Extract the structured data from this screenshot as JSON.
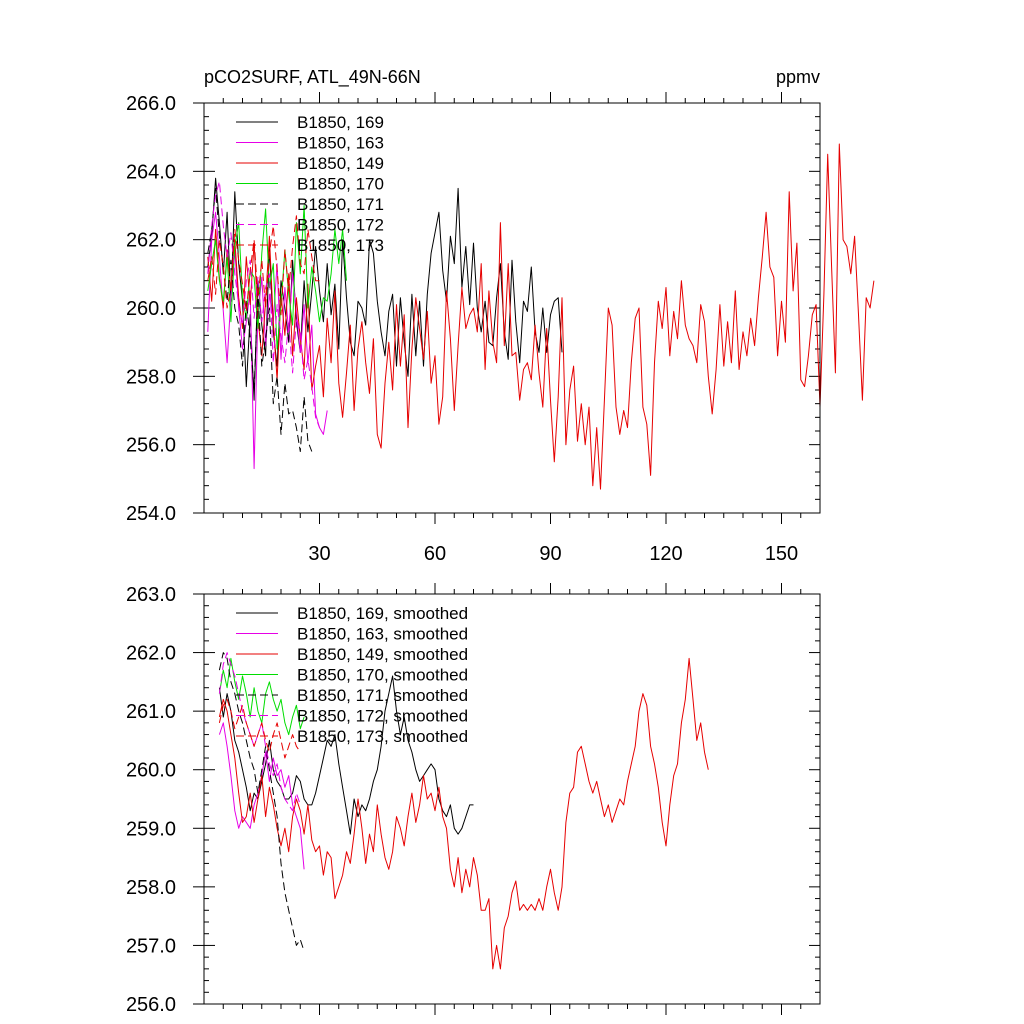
{
  "chart_data": [
    {
      "type": "line",
      "title": "pCO2SURF, ATL_49N-66N",
      "units": "ppmv",
      "xlim": [
        0,
        160
      ],
      "ylim": [
        254,
        266
      ],
      "x_ticks": [
        30,
        60,
        90,
        120,
        150
      ],
      "y_ticks": [
        254.0,
        256.0,
        258.0,
        260.0,
        262.0,
        264.0,
        266.0
      ],
      "y_tick_labels": [
        "254.0",
        "256.0",
        "258.0",
        "260.0",
        "262.0",
        "264.0",
        "266.0"
      ],
      "x_tick_labels": [
        "30",
        "60",
        "90",
        "120",
        "150"
      ],
      "legend_position": "top-left",
      "series": [
        {
          "name": "B1850, 169",
          "color": "#000000",
          "dash": "solid",
          "start": 1,
          "values": [
            261.2,
            262.1,
            263.8,
            262.5,
            261.0,
            262.8,
            260.2,
            263.4,
            261.3,
            260.2,
            257.7,
            259.8,
            257.3,
            260.8,
            259.5,
            258.6,
            261.8,
            259.3,
            258.3,
            260.8,
            260.0,
            259.0,
            261.4,
            259.6,
            258.7,
            260.8,
            259.3,
            260.5,
            261.8,
            260.5,
            259.6,
            261.3,
            259.8,
            260.7,
            258.8,
            262.0,
            260.3,
            259.0,
            258.6,
            260.2,
            260.0,
            259.5,
            262.0,
            261.6,
            260.2,
            259.3,
            258.6,
            259.9,
            260.4,
            258.3,
            260.3,
            259.0,
            258.0,
            260.4,
            258.6,
            260.2,
            258.3,
            260.4,
            261.6,
            262.2,
            262.8,
            261.1,
            260.2,
            262.1,
            261.3,
            263.5,
            260.6,
            261.8,
            260.1,
            261.9,
            260.0,
            259.3,
            260.2,
            259.0,
            258.9,
            260.3,
            261.3,
            259.3,
            258.5,
            261.4,
            259.6,
            258.4,
            260.2,
            259.9,
            261.2,
            259.3,
            258.7,
            260.0,
            258.7,
            259.8,
            260.2,
            260.3,
            258.7
          ]
        },
        {
          "name": "B1850, 163",
          "color": "#e600e6",
          "dash": "solid",
          "start": 1,
          "values": [
            259.3,
            262.0,
            262.8,
            261.5,
            259.9,
            258.4,
            260.3,
            261.7,
            260.0,
            258.8,
            259.6,
            260.5,
            255.3,
            259.8,
            260.9,
            258.9,
            260.4,
            259.6,
            261.3,
            258.5,
            260.6,
            259.3,
            261.0,
            259.9,
            258.7,
            260.1,
            258.4,
            259.5,
            256.9,
            256.5,
            256.3,
            257.0
          ]
        },
        {
          "name": "B1850, 149",
          "color": "#e60000",
          "dash": "solid",
          "start": 1,
          "values": [
            261.5,
            260.2,
            262.3,
            260.9,
            260.0,
            261.7,
            260.5,
            262.0,
            260.3,
            259.4,
            261.5,
            260.1,
            261.9,
            259.7,
            258.6,
            260.2,
            262.1,
            259.6,
            257.9,
            260.4,
            259.2,
            261.0,
            258.6,
            260.3,
            259.1,
            258.2,
            260.7,
            257.6,
            258.3,
            258.9,
            257.4,
            259.7,
            258.4,
            260.5,
            257.8,
            256.8,
            258.1,
            259.5,
            257.0,
            258.8,
            259.6,
            258.4,
            257.5,
            259.1,
            256.3,
            255.9,
            257.8,
            259.0,
            257.6,
            260.1,
            258.3,
            259.8,
            256.5,
            258.8,
            260.3,
            259.4,
            258.5,
            259.9,
            257.8,
            258.6,
            256.6,
            257.4,
            260.5,
            259.1,
            257.0,
            258.9,
            260.6,
            259.4,
            259.8,
            260.0,
            259.3,
            261.3,
            258.2,
            260.5,
            259.0,
            258.4,
            262.5,
            258.9,
            261.3,
            258.6,
            258.7,
            257.3,
            258.2,
            258.4,
            257.9,
            259.5,
            258.1,
            257.1,
            259.4,
            257.3,
            255.5,
            257.4,
            260.3,
            256.0,
            257.6,
            258.3,
            256.1,
            257.2,
            256.0,
            257.1,
            254.8,
            256.5,
            254.7,
            257.3,
            260.0,
            259.5,
            257.1,
            256.3,
            257.0,
            256.5,
            258.4,
            259.7,
            260.0,
            257.1,
            256.6,
            255.1,
            258.4,
            260.2,
            259.4,
            260.6,
            258.6,
            259.9,
            259.1,
            260.8,
            259.5,
            259.1,
            258.9,
            258.4,
            260.1,
            259.6,
            258.0,
            256.9,
            258.2,
            260.1,
            258.3,
            259.6,
            258.4,
            260.5,
            258.2,
            259.3,
            258.6,
            259.7,
            258.9,
            260.3,
            261.5,
            262.8,
            261.2,
            260.9,
            258.6,
            260.2,
            259.0,
            263.4,
            260.5,
            261.9,
            257.9,
            257.7,
            258.6,
            259.8,
            260.1,
            257.1,
            260.4,
            264.5,
            261.2,
            258.1,
            264.8,
            262.0,
            261.8,
            261.0,
            262.1,
            259.8,
            257.3,
            260.3,
            260.0,
            260.8
          ]
        },
        {
          "name": "B1850, 170",
          "color": "#00dd00",
          "dash": "solid",
          "start": 1,
          "values": [
            260.5,
            261.3,
            262.0,
            260.8,
            260.2,
            261.5,
            259.6,
            261.8,
            262.5,
            260.3,
            259.7,
            261.1,
            260.9,
            259.4,
            261.6,
            262.9,
            260.6,
            261.3,
            258.8,
            260.1,
            261.7,
            260.4,
            259.5,
            262.5,
            261.0,
            263.0,
            260.0,
            261.2,
            260.5,
            259.6,
            260.3,
            260.2,
            261.0,
            262.3,
            261.3,
            262.3,
            260.8
          ]
        },
        {
          "name": "B1850, 171",
          "color": "#000000",
          "dash": "dashed",
          "start": 1,
          "values": [
            261.6,
            262.3,
            263.5,
            262.1,
            261.2,
            260.2,
            261.4,
            260.0,
            259.5,
            258.3,
            260.2,
            259.1,
            257.6,
            260.5,
            258.3,
            259.1,
            260.0,
            257.2,
            258.0,
            256.3,
            257.8,
            256.9,
            257.0,
            256.5,
            255.8,
            257.4,
            256.1,
            255.8
          ]
        },
        {
          "name": "B1850, 172",
          "color": "#e600e6",
          "dash": "dashed",
          "start": 1,
          "values": [
            261.0,
            262.4,
            263.3,
            263.7,
            262.4,
            261.5,
            262.2,
            261.0,
            260.1,
            259.5,
            260.8,
            261.4,
            259.7,
            260.9,
            259.6,
            260.6,
            261.0,
            258.4,
            260.1,
            259.2,
            258.4,
            259.6,
            258.1,
            259.7,
            259.3,
            257.9,
            258.5,
            257.7,
            256.8,
            256.5
          ]
        },
        {
          "name": "B1850, 173",
          "color": "#e60000",
          "dash": "dashed",
          "start": 1,
          "values": [
            260.8,
            261.5,
            260.4,
            262.0,
            261.2,
            260.0,
            260.6,
            262.3,
            261.4,
            260.7,
            259.9,
            261.1,
            262.0,
            260.3,
            261.4,
            260.0,
            261.6,
            262.4,
            261.1,
            259.8,
            261.7,
            260.5,
            261.8,
            262.7,
            261.3,
            261.0,
            262.3,
            261.5,
            260.8,
            260.8
          ]
        }
      ]
    },
    {
      "type": "line",
      "title": "",
      "xlim": [
        0,
        160
      ],
      "ylim": [
        256,
        263
      ],
      "x_ticks": [
        30,
        60,
        90,
        120,
        150
      ],
      "y_ticks": [
        256.0,
        257.0,
        258.0,
        259.0,
        260.0,
        261.0,
        262.0,
        263.0
      ],
      "y_tick_labels": [
        "256.0",
        "257.0",
        "258.0",
        "259.0",
        "260.0",
        "261.0",
        "262.0",
        "263.0"
      ],
      "legend_position": "top-left",
      "series": [
        {
          "name": "B1850, 169, smoothed",
          "color": "#000000",
          "dash": "solid",
          "start": 4,
          "values": [
            261.4,
            260.9,
            261.3,
            261.0,
            260.5,
            260.3,
            260.0,
            259.7,
            259.3,
            259.6,
            259.5,
            259.8,
            260.1,
            260.5,
            260.0,
            259.8,
            259.7,
            259.5,
            259.5,
            259.6,
            259.9,
            259.8,
            259.5,
            259.4,
            259.4,
            259.6,
            259.9,
            260.2,
            260.5,
            260.4,
            260.6,
            260.1,
            259.7,
            259.3,
            258.9,
            259.5,
            259.2,
            259.4,
            259.3,
            259.5,
            259.8,
            260.0,
            260.4,
            261.0,
            261.3,
            261.6,
            261.0,
            260.6,
            260.9,
            260.5,
            260.3,
            260.0,
            259.8,
            259.9,
            260.0,
            260.1,
            260.0,
            259.5,
            259.3,
            259.2,
            259.4,
            259.0,
            258.9,
            259.0,
            259.2,
            259.4,
            259.4
          ]
        },
        {
          "name": "B1850, 163, smoothed",
          "color": "#e600e6",
          "dash": "solid",
          "start": 4,
          "values": [
            260.6,
            260.8,
            260.4,
            259.9,
            259.3,
            259.0,
            259.2,
            259.1,
            259.0,
            259.4,
            259.6,
            259.9,
            260.3,
            259.8,
            260.2,
            259.9,
            260.0,
            259.7,
            259.9,
            259.4,
            259.2,
            259.0,
            258.3
          ]
        },
        {
          "name": "B1850, 149, smoothed",
          "color": "#e60000",
          "dash": "solid",
          "start": 4,
          "values": [
            260.9,
            261.2,
            261.0,
            260.6,
            260.2,
            259.6,
            259.1,
            259.2,
            259.6,
            259.1,
            259.5,
            259.9,
            259.2,
            259.7,
            259.4,
            259.0,
            258.7,
            259.0,
            258.6,
            259.2,
            259.5,
            259.3,
            258.9,
            259.4,
            258.8,
            258.6,
            258.7,
            258.2,
            258.6,
            258.5,
            257.8,
            258.0,
            258.2,
            258.6,
            258.4,
            258.9,
            259.5,
            259.0,
            258.4,
            258.9,
            258.6,
            259.4,
            258.9,
            258.5,
            258.3,
            258.6,
            259.2,
            259.0,
            258.7,
            259.2,
            259.6,
            259.1,
            259.4,
            259.9,
            259.5,
            259.6,
            259.3,
            259.7,
            259.2,
            259.0,
            258.3,
            258.0,
            258.5,
            257.9,
            258.3,
            258.0,
            258.5,
            258.2,
            257.6,
            257.6,
            257.8,
            256.6,
            257.0,
            256.6,
            257.3,
            257.5,
            257.9,
            258.1,
            257.6,
            257.7,
            257.6,
            257.7,
            257.6,
            257.8,
            257.6,
            258.0,
            258.3,
            257.9,
            257.6,
            258.0,
            259.1,
            259.6,
            259.7,
            260.3,
            260.4,
            260.1,
            259.8,
            259.6,
            259.8,
            259.5,
            259.2,
            259.4,
            259.1,
            259.3,
            259.5,
            259.4,
            259.8,
            260.1,
            260.4,
            261.0,
            261.3,
            261.1,
            260.4,
            260.1,
            259.7,
            259.1,
            258.7,
            259.4,
            259.9,
            260.1,
            260.8,
            261.2,
            261.9,
            261.2,
            260.5,
            260.8,
            260.3,
            260.0
          ]
        },
        {
          "name": "B1850, 170, smoothed",
          "color": "#00dd00",
          "dash": "solid",
          "start": 4,
          "values": [
            261.3,
            261.7,
            261.4,
            261.9,
            261.5,
            261.2,
            261.6,
            261.3,
            260.9,
            261.4,
            261.0,
            260.8,
            261.3,
            261.5,
            261.2,
            261.0,
            261.2,
            260.8,
            260.6,
            260.9,
            261.1,
            260.7,
            260.9
          ]
        },
        {
          "name": "B1850, 171, smoothed",
          "color": "#000000",
          "dash": "dashed",
          "start": 4,
          "values": [
            261.7,
            262.0,
            261.9,
            261.5,
            261.3,
            261.0,
            260.8,
            260.5,
            260.2,
            260.0,
            259.6,
            260.0,
            260.4,
            260.0,
            259.6,
            259.2,
            258.4,
            257.9,
            257.6,
            257.3,
            257.0,
            257.1,
            256.9
          ]
        },
        {
          "name": "B1850, 172, smoothed",
          "color": "#e600e6",
          "dash": "dashed",
          "start": 4,
          "values": [
            261.3,
            261.8,
            262.0,
            261.8,
            261.6,
            261.3,
            261.0,
            260.8,
            260.6,
            260.4,
            260.6,
            260.8,
            260.4,
            260.1,
            259.9,
            260.1,
            259.7,
            259.5,
            259.4,
            259.3,
            259.6,
            259.4
          ]
        },
        {
          "name": "B1850, 173, smoothed",
          "color": "#e60000",
          "dash": "dashed",
          "start": 4,
          "values": [
            260.8,
            261.1,
            261.2,
            261.0,
            260.7,
            260.9,
            261.1,
            260.8,
            260.6,
            260.4,
            260.6,
            260.8,
            260.5,
            260.3,
            260.6,
            260.8,
            260.5,
            260.2,
            260.4,
            260.6,
            260.4,
            260.3
          ]
        }
      ]
    }
  ]
}
